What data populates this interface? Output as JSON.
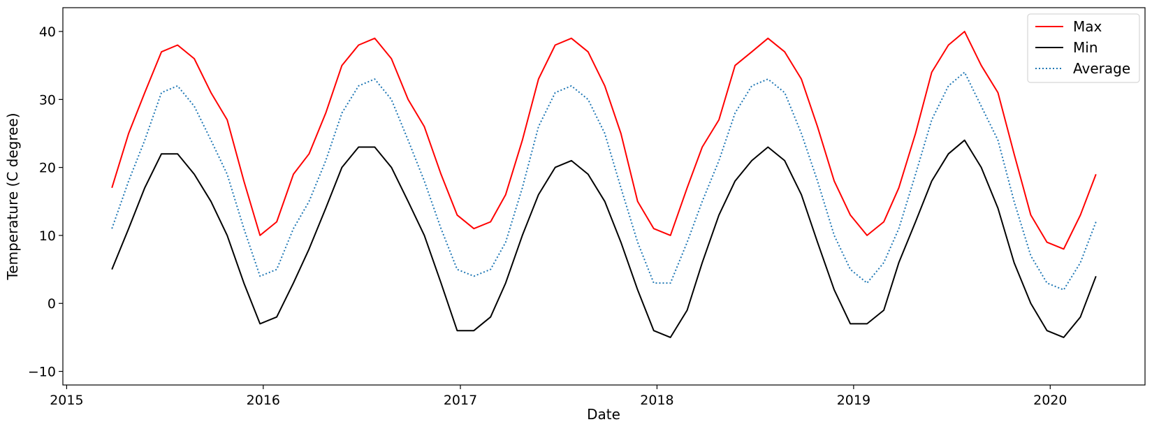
{
  "chart_data": {
    "type": "line",
    "title": "",
    "xlabel": "Date",
    "ylabel": "Temperature  (C degree)",
    "xlim": [
      "2014-12-25",
      "2020-06-25"
    ],
    "ylim": [
      -12,
      43.5
    ],
    "xticks": [
      {
        "label": "2015",
        "date": "2015-01-01"
      },
      {
        "label": "2016",
        "date": "2016-01-01"
      },
      {
        "label": "2017",
        "date": "2017-01-01"
      },
      {
        "label": "2018",
        "date": "2018-01-01"
      },
      {
        "label": "2019",
        "date": "2019-01-01"
      },
      {
        "label": "2020",
        "date": "2020-01-01"
      }
    ],
    "yticks": [
      -10,
      0,
      10,
      20,
      30,
      40
    ],
    "ytick_labels": [
      "−10",
      "0",
      "10",
      "20",
      "30",
      "40"
    ],
    "legend_position": "top-right",
    "grid": false,
    "x": [
      "2015-03-26",
      "2015-04-26",
      "2015-05-26",
      "2015-06-26",
      "2015-07-26",
      "2015-08-26",
      "2015-09-26",
      "2015-10-26",
      "2015-11-26",
      "2015-12-26",
      "2016-01-26",
      "2016-02-26",
      "2016-03-26",
      "2016-04-26",
      "2016-05-26",
      "2016-06-26",
      "2016-07-26",
      "2016-08-26",
      "2016-09-26",
      "2016-10-26",
      "2016-11-26",
      "2016-12-26",
      "2017-01-26",
      "2017-02-26",
      "2017-03-26",
      "2017-04-26",
      "2017-05-26",
      "2017-06-26",
      "2017-07-26",
      "2017-08-26",
      "2017-09-26",
      "2017-10-26",
      "2017-11-26",
      "2017-12-26",
      "2018-01-26",
      "2018-02-26",
      "2018-03-26",
      "2018-04-26",
      "2018-05-26",
      "2018-06-26",
      "2018-07-26",
      "2018-08-26",
      "2018-09-26",
      "2018-10-26",
      "2018-11-26",
      "2018-12-26",
      "2019-01-26",
      "2019-02-26",
      "2019-03-26",
      "2019-04-26",
      "2019-05-26",
      "2019-06-26",
      "2019-07-26",
      "2019-08-26",
      "2019-09-26",
      "2019-10-26",
      "2019-11-26",
      "2019-12-26",
      "2020-01-26",
      "2020-02-26",
      "2020-03-26"
    ],
    "series": [
      {
        "name": "Max",
        "color": "#ff0000",
        "style": "solid",
        "values": [
          17,
          25,
          31,
          37,
          38,
          36,
          31,
          27,
          18,
          10,
          12,
          19,
          22,
          28,
          35,
          38,
          39,
          36,
          30,
          26,
          19,
          13,
          11,
          12,
          16,
          24,
          33,
          38,
          39,
          37,
          32,
          25,
          15,
          11,
          10,
          17,
          23,
          27,
          35,
          37,
          39,
          37,
          33,
          26,
          18,
          13,
          10,
          12,
          17,
          25,
          34,
          38,
          40,
          35,
          31,
          22,
          13,
          9,
          8,
          13,
          19
        ]
      },
      {
        "name": "Min",
        "color": "#000000",
        "style": "solid",
        "values": [
          5,
          11,
          17,
          22,
          22,
          19,
          15,
          10,
          3,
          -3,
          -2,
          3,
          8,
          14,
          20,
          23,
          23,
          20,
          15,
          10,
          3,
          -4,
          -4,
          -2,
          3,
          10,
          16,
          20,
          21,
          19,
          15,
          9,
          2,
          -4,
          -5,
          -1,
          6,
          13,
          18,
          21,
          23,
          21,
          16,
          9,
          2,
          -3,
          -3,
          -1,
          6,
          12,
          18,
          22,
          24,
          20,
          14,
          6,
          0,
          -4,
          -5,
          -2,
          4
        ]
      },
      {
        "name": "Average",
        "color": "#1f77b4",
        "style": "dotted",
        "values": [
          11,
          18,
          24,
          31,
          32,
          29,
          24,
          19,
          11,
          4,
          5,
          11,
          15,
          21,
          28,
          32,
          33,
          30,
          24,
          18,
          11,
          5,
          4,
          5,
          9,
          17,
          26,
          31,
          32,
          30,
          25,
          17,
          9,
          3,
          3,
          9,
          15,
          21,
          28,
          32,
          33,
          31,
          25,
          18,
          10,
          5,
          3,
          6,
          11,
          19,
          27,
          32,
          34,
          29,
          24,
          15,
          7,
          3,
          2,
          6,
          12
        ]
      }
    ]
  }
}
